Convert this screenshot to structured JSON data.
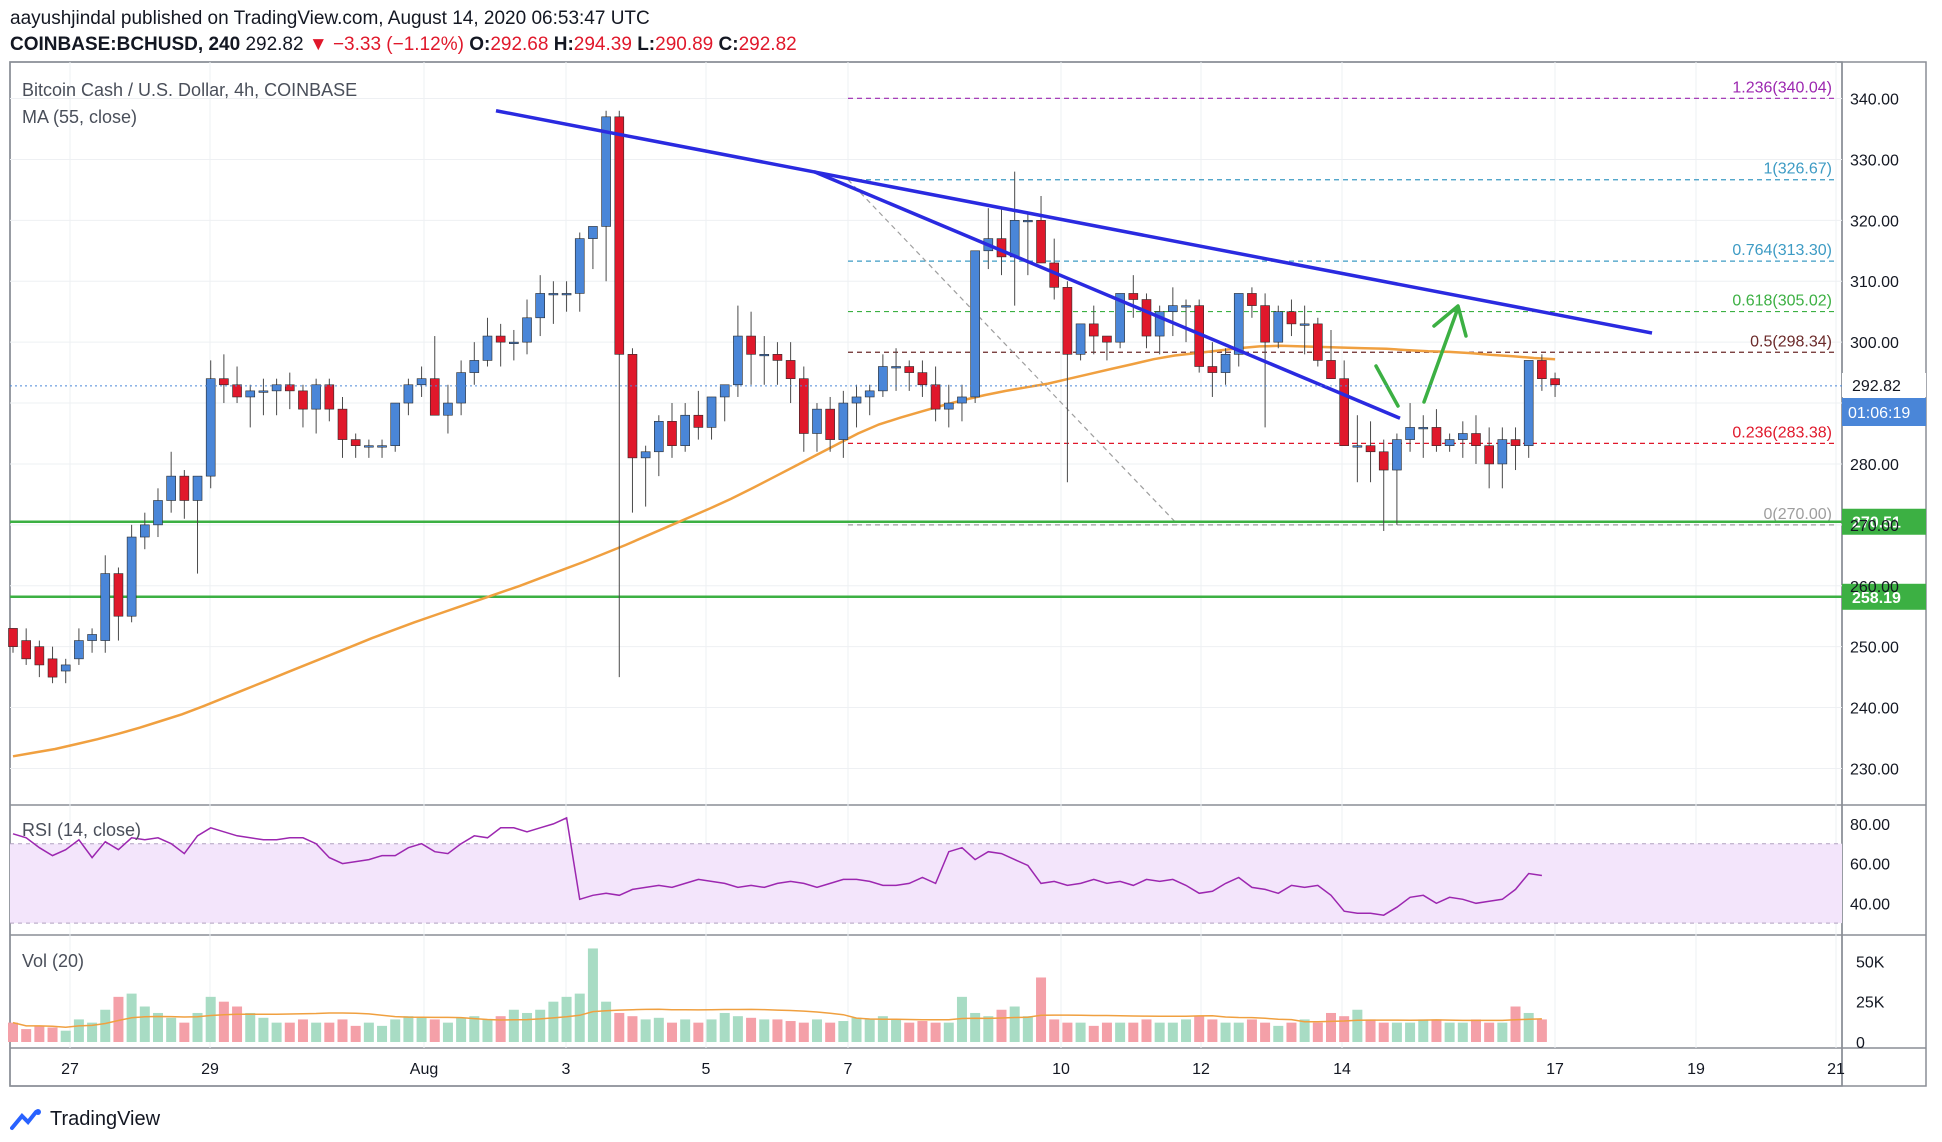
{
  "header": {
    "author": "aayushjindal",
    "published": "published on TradingView.com, August 14, 2020 06:53:47 UTC",
    "symbol": "COINBASE:BCHUSD, 240",
    "last": "292.82",
    "change": "−3.33 (−1.12%)",
    "open_label": "O:",
    "open": "292.68",
    "high_label": "H:",
    "high": "294.39",
    "low_label": "L:",
    "low": "290.89",
    "close_label": "C:",
    "close": "292.82"
  },
  "pane_titles": {
    "main": "Bitcoin Cash / U.S. Dollar, 4h, COINBASE",
    "ma": "MA (55, close)",
    "rsi": "RSI (14, close)",
    "vol": "Vol (20)"
  },
  "price_tag": {
    "value": "292.82",
    "countdown": "01:06:19"
  },
  "footer": {
    "brand": "TradingView"
  },
  "colors": {
    "up": "#4a86d8",
    "down": "#e0182b",
    "ma": "#f0a040",
    "trend": "#2a2ae0",
    "support": "#3cb043",
    "rsi": "#9c27b0",
    "vol_up": "#a8dcc4",
    "vol_down": "#f4a0a8"
  },
  "chart_data": [
    {
      "type": "candlestick",
      "title": "Bitcoin Cash / U.S. Dollar, 4h, COINBASE",
      "x_ticks": [
        "27",
        "29",
        "Aug",
        "3",
        "5",
        "7",
        "10",
        "12",
        "14",
        "17",
        "19",
        "21"
      ],
      "y_ticks": [
        230,
        240,
        250,
        260,
        270,
        280,
        290,
        300,
        310,
        320,
        330,
        340
      ],
      "ylim": [
        224,
        346
      ],
      "grid": true,
      "candles_ohlc": [
        [
          253,
          253,
          249,
          250
        ],
        [
          251,
          253,
          247,
          248
        ],
        [
          250,
          251,
          245,
          247
        ],
        [
          248,
          250,
          244,
          245
        ],
        [
          246,
          248,
          244,
          247
        ],
        [
          248,
          253,
          247,
          251
        ],
        [
          251,
          253,
          249,
          252
        ],
        [
          251,
          265,
          249,
          262
        ],
        [
          262,
          263,
          251,
          255
        ],
        [
          255,
          270,
          254,
          268
        ],
        [
          268,
          272,
          266,
          270
        ],
        [
          270,
          276,
          268,
          274
        ],
        [
          274,
          282,
          272,
          278
        ],
        [
          278,
          279,
          271,
          274
        ],
        [
          274,
          278,
          262,
          278
        ],
        [
          278,
          297,
          276,
          294
        ],
        [
          294,
          298,
          290,
          293
        ],
        [
          293,
          296,
          290,
          291
        ],
        [
          291,
          293,
          286,
          292
        ],
        [
          292,
          294,
          288,
          292
        ],
        [
          292,
          294,
          288,
          293
        ],
        [
          293,
          295,
          289,
          292
        ],
        [
          292,
          293,
          286,
          289
        ],
        [
          289,
          294,
          285,
          293
        ],
        [
          293,
          294,
          287,
          289
        ],
        [
          289,
          291,
          281,
          284
        ],
        [
          284,
          285,
          281,
          283
        ],
        [
          283,
          284,
          281,
          283
        ],
        [
          283,
          284,
          281,
          283
        ],
        [
          283,
          290,
          282,
          290
        ],
        [
          290,
          294,
          288,
          293
        ],
        [
          293,
          296,
          291,
          294
        ],
        [
          294,
          301,
          290,
          288
        ],
        [
          288,
          293,
          285,
          290
        ],
        [
          290,
          297,
          288,
          295
        ],
        [
          295,
          300,
          293,
          297
        ],
        [
          297,
          304,
          296,
          301
        ],
        [
          301,
          303,
          296,
          300
        ],
        [
          300,
          302,
          297,
          300
        ],
        [
          300,
          307,
          298,
          304
        ],
        [
          304,
          311,
          301,
          308
        ],
        [
          308,
          310,
          303,
          308
        ],
        [
          308,
          310,
          305,
          308
        ],
        [
          308,
          318,
          305,
          317
        ],
        [
          317,
          318,
          312,
          319
        ],
        [
          319,
          338,
          310,
          337
        ],
        [
          337,
          338,
          245,
          298
        ],
        [
          298,
          299,
          272,
          281
        ],
        [
          281,
          283,
          273,
          282
        ],
        [
          282,
          288,
          278,
          287
        ],
        [
          287,
          290,
          281,
          283
        ],
        [
          283,
          290,
          282,
          288
        ],
        [
          288,
          292,
          284,
          286
        ],
        [
          286,
          291,
          284,
          291
        ],
        [
          291,
          293,
          287,
          293
        ],
        [
          293,
          306,
          291,
          301
        ],
        [
          301,
          305,
          293,
          298
        ],
        [
          298,
          301,
          293,
          298
        ],
        [
          298,
          300,
          293,
          297
        ],
        [
          297,
          300,
          290,
          294
        ],
        [
          294,
          296,
          282,
          285
        ],
        [
          285,
          290,
          282,
          289
        ],
        [
          289,
          291,
          282,
          284
        ],
        [
          284,
          292,
          281,
          290
        ],
        [
          290,
          293,
          286,
          291
        ],
        [
          291,
          293,
          288,
          292
        ],
        [
          292,
          298,
          291,
          296
        ],
        [
          296,
          299,
          292,
          296
        ],
        [
          296,
          297,
          292,
          295
        ],
        [
          295,
          297,
          291,
          293
        ],
        [
          293,
          296,
          287,
          289
        ],
        [
          289,
          293,
          286,
          290
        ],
        [
          290,
          293,
          287,
          291
        ],
        [
          291,
          315,
          290,
          315
        ],
        [
          315,
          322,
          312,
          317
        ],
        [
          317,
          322,
          311,
          314
        ],
        [
          314,
          328,
          306,
          320
        ],
        [
          320,
          321,
          311,
          320
        ],
        [
          320,
          324,
          313,
          313
        ],
        [
          313,
          317,
          307,
          309
        ],
        [
          309,
          310,
          277,
          298
        ],
        [
          298,
          302,
          297,
          303
        ],
        [
          303,
          306,
          298,
          301
        ],
        [
          301,
          301,
          297,
          300
        ],
        [
          300,
          308,
          299,
          308
        ],
        [
          308,
          311,
          304,
          307
        ],
        [
          307,
          308,
          299,
          301
        ],
        [
          301,
          306,
          298,
          305
        ],
        [
          305,
          309,
          301,
          306
        ],
        [
          306,
          307,
          300,
          306
        ],
        [
          306,
          307,
          295,
          296
        ],
        [
          296,
          300,
          291,
          295
        ],
        [
          295,
          299,
          293,
          298
        ],
        [
          298,
          308,
          296,
          308
        ],
        [
          308,
          309,
          304,
          306
        ],
        [
          306,
          308,
          286,
          300
        ],
        [
          300,
          306,
          299,
          305
        ],
        [
          305,
          307,
          301,
          303
        ],
        [
          303,
          306,
          298,
          303
        ],
        [
          303,
          304,
          296,
          297
        ],
        [
          297,
          302,
          294,
          294
        ],
        [
          294,
          297,
          283,
          283
        ],
        [
          283,
          288,
          277,
          283
        ],
        [
          283,
          287,
          277,
          282
        ],
        [
          282,
          284,
          269,
          279
        ],
        [
          279,
          285,
          270,
          284
        ],
        [
          284,
          290,
          282,
          286
        ],
        [
          286,
          288,
          281,
          286
        ],
        [
          286,
          289,
          282,
          283
        ],
        [
          283,
          285,
          282,
          284
        ],
        [
          284,
          287,
          281,
          285
        ],
        [
          285,
          288,
          280,
          283
        ],
        [
          283,
          286,
          276,
          280
        ],
        [
          280,
          286,
          276,
          284
        ],
        [
          284,
          286,
          279,
          283
        ],
        [
          283,
          297,
          281,
          297
        ],
        [
          297,
          298,
          292,
          294
        ],
        [
          294,
          295,
          291,
          293
        ]
      ],
      "fib_levels": [
        {
          "label": "1.236(340.04)",
          "value": 340.04
        },
        {
          "label": "1(326.67)",
          "value": 326.67
        },
        {
          "label": "0.764(313.30)",
          "value": 313.3
        },
        {
          "label": "0.618(305.02)",
          "value": 305.02
        },
        {
          "label": "0.5(298.34)",
          "value": 298.34
        },
        {
          "label": "0.236(283.38)",
          "value": 283.38
        },
        {
          "label": "0(270.00)",
          "value": 270.0
        }
      ],
      "support_levels": [
        {
          "label": "270.51",
          "value": 270.51
        },
        {
          "label": "258.19",
          "value": 258.19
        }
      ],
      "ma55": [
        232,
        232.6,
        233.2,
        234,
        234.8,
        235.7,
        236.7,
        237.8,
        238.9,
        240.2,
        241.6,
        243,
        244.4,
        245.8,
        247.2,
        248.6,
        250,
        251.4,
        252.7,
        254,
        255.2,
        256.4,
        257.6,
        258.8,
        260,
        261.3,
        262.6,
        263.9,
        265.3,
        266.7,
        268.2,
        269.7,
        271.2,
        272.7,
        274.3,
        276,
        277.8,
        279.6,
        281.4,
        283.2,
        285,
        286.5,
        287.6,
        288.6,
        289.6,
        290.5,
        291.3,
        292,
        292.6,
        293.2,
        294,
        294.8,
        295.6,
        296.4,
        297.2,
        297.8,
        298.2,
        298.6,
        299,
        299.3,
        299.4,
        299.3,
        299.2,
        299.1,
        299,
        298.9,
        298.7,
        298.5,
        298.4,
        298.2,
        297.9,
        297.7,
        297.4,
        297.2
      ],
      "rsi": [
        75,
        73,
        68,
        64,
        67,
        72,
        63,
        71,
        67,
        73,
        72,
        73,
        70,
        65,
        74,
        78,
        76,
        74,
        73,
        72,
        72,
        73,
        73,
        70,
        63,
        60,
        61,
        62,
        64,
        64,
        68,
        70,
        66,
        65,
        70,
        74,
        73,
        78,
        78,
        76,
        78,
        80,
        83,
        42,
        44,
        45,
        44,
        47,
        48,
        49,
        48,
        50,
        52,
        51,
        50,
        48,
        49,
        48,
        50,
        51,
        50,
        48,
        50,
        52,
        52,
        51,
        49,
        49,
        50,
        53,
        50,
        66,
        68,
        62,
        66,
        65,
        62,
        59,
        50,
        51,
        49,
        50,
        52,
        50,
        51,
        49,
        52,
        51,
        52,
        49,
        45,
        46,
        50,
        53,
        48,
        47,
        45,
        49,
        48,
        49,
        44,
        36,
        35,
        35,
        34,
        38,
        43,
        44,
        40,
        43,
        42,
        40,
        41,
        42,
        47,
        55,
        54
      ],
      "rsi_ticks": [
        40,
        60,
        80
      ],
      "rsi_band": [
        30,
        70
      ],
      "volume": [
        12,
        8,
        10,
        9,
        7,
        14,
        12,
        20,
        28,
        30,
        22,
        18,
        15,
        12,
        18,
        28,
        25,
        22,
        18,
        15,
        12,
        12,
        14,
        12,
        12,
        14,
        10,
        12,
        10,
        14,
        16,
        15,
        14,
        12,
        15,
        16,
        14,
        16,
        20,
        18,
        20,
        25,
        28,
        30,
        58,
        25,
        18,
        16,
        14,
        15,
        12,
        14,
        12,
        14,
        18,
        16,
        15,
        14,
        14,
        13,
        12,
        14,
        12,
        13,
        15,
        14,
        16,
        14,
        12,
        13,
        12,
        12,
        28,
        18,
        16,
        20,
        22,
        16,
        40,
        14,
        12,
        12,
        10,
        12,
        12,
        12,
        14,
        12,
        12,
        14,
        16,
        14,
        12,
        12,
        14,
        12,
        10,
        12,
        14,
        12,
        18,
        16,
        20,
        14,
        12,
        12,
        12,
        14,
        14,
        12,
        12,
        14,
        12,
        12,
        22,
        18,
        14
      ],
      "vol_ticks": [
        "0",
        "25K",
        "50K"
      ]
    }
  ]
}
